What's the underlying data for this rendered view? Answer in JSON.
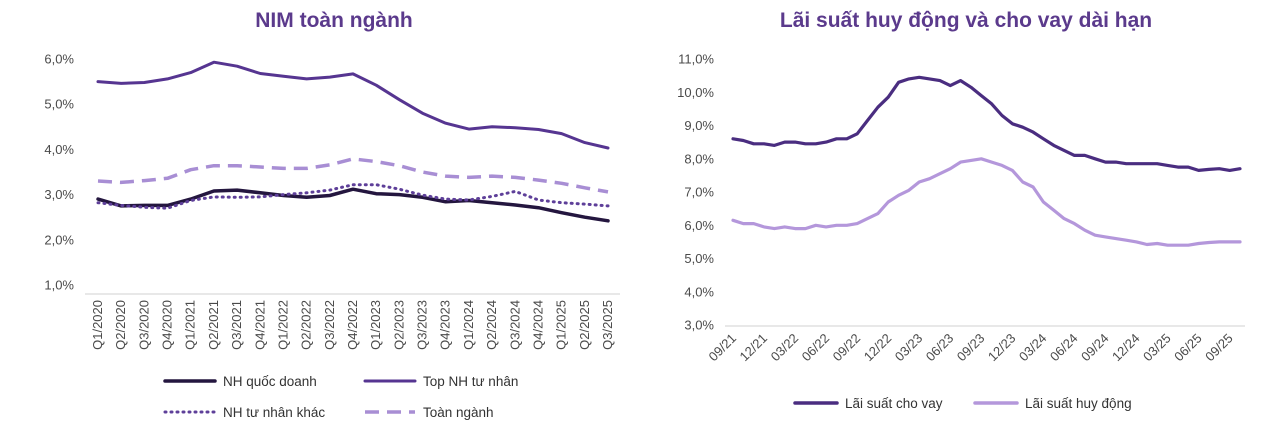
{
  "chart_data": [
    {
      "type": "line",
      "title": "NIM toàn ngành",
      "categories": [
        "Q1/2020",
        "Q2/2020",
        "Q3/2020",
        "Q4/2020",
        "Q1/2021",
        "Q2/2021",
        "Q3/2021",
        "Q4/2021",
        "Q1/2022",
        "Q2/2022",
        "Q3/2022",
        "Q4/2022",
        "Q1/2023",
        "Q2/2023",
        "Q3/2023",
        "Q4/2023",
        "Q1/2024",
        "Q2/2024",
        "Q3/2024",
        "Q4/2024",
        "Q1/2025",
        "Q2/2025",
        "Q3/2025"
      ],
      "yticks": [
        "1,0%",
        "2,0%",
        "3,0%",
        "4,0%",
        "5,0%",
        "6,0%"
      ],
      "ylim": [
        1.0,
        6.0
      ],
      "grid": false,
      "legend_position": "bottom",
      "series": [
        {
          "name": "NH quốc doanh",
          "style": "solid-thick",
          "color": "#24163f",
          "values": [
            2.9,
            2.75,
            2.76,
            2.76,
            2.9,
            3.08,
            3.1,
            3.04,
            2.98,
            2.94,
            2.98,
            3.12,
            3.02,
            3.0,
            2.94,
            2.84,
            2.87,
            2.82,
            2.77,
            2.71,
            2.6,
            2.5,
            2.42
          ]
        },
        {
          "name": "Top NH tư nhân",
          "style": "solid",
          "color": "#563591",
          "values": [
            5.5,
            5.46,
            5.48,
            5.56,
            5.7,
            5.93,
            5.84,
            5.68,
            5.62,
            5.56,
            5.6,
            5.67,
            5.42,
            5.1,
            4.8,
            4.58,
            4.45,
            4.5,
            4.48,
            4.44,
            4.35,
            4.15,
            4.03
          ]
        },
        {
          "name": "NH tư nhân khác",
          "style": "dotted",
          "color": "#5e3f99",
          "values": [
            2.82,
            2.76,
            2.72,
            2.7,
            2.87,
            2.95,
            2.94,
            2.95,
            3.0,
            3.04,
            3.1,
            3.22,
            3.22,
            3.12,
            2.99,
            2.9,
            2.88,
            2.96,
            3.07,
            2.88,
            2.82,
            2.79,
            2.75
          ]
        },
        {
          "name": "Toàn ngành",
          "style": "dashed",
          "color": "#a88ed4",
          "values": [
            3.3,
            3.27,
            3.31,
            3.36,
            3.55,
            3.64,
            3.64,
            3.61,
            3.58,
            3.58,
            3.66,
            3.79,
            3.73,
            3.64,
            3.5,
            3.41,
            3.38,
            3.41,
            3.38,
            3.32,
            3.25,
            3.15,
            3.06
          ]
        }
      ]
    },
    {
      "type": "line",
      "title": "Lãi suất huy động và cho vay dài hạn",
      "xticks": [
        "09/21",
        "12/21",
        "03/22",
        "06/22",
        "09/22",
        "12/22",
        "03/23",
        "06/23",
        "09/23",
        "12/23",
        "03/24",
        "06/24",
        "09/24",
        "12/24",
        "03/25",
        "06/25",
        "09/25"
      ],
      "yticks": [
        "3,0%",
        "4,0%",
        "5,0%",
        "6,0%",
        "7,0%",
        "8,0%",
        "9,0%",
        "10,0%",
        "11,0%"
      ],
      "ylim": [
        3.0,
        11.0
      ],
      "grid": false,
      "legend_position": "bottom",
      "series": [
        {
          "name": "Lãi suất cho vay",
          "color": "#4a2d80",
          "values": [
            8.6,
            8.55,
            8.45,
            8.45,
            8.4,
            8.5,
            8.5,
            8.45,
            8.45,
            8.5,
            8.6,
            8.6,
            8.75,
            9.15,
            9.55,
            9.85,
            10.3,
            10.4,
            10.45,
            10.4,
            10.35,
            10.2,
            10.35,
            10.15,
            9.9,
            9.65,
            9.3,
            9.05,
            8.95,
            8.8,
            8.6,
            8.4,
            8.25,
            8.1,
            8.1,
            8.0,
            7.9,
            7.9,
            7.85,
            7.85,
            7.85,
            7.85,
            7.8,
            7.75,
            7.75,
            7.65,
            7.68,
            7.7,
            7.65,
            7.7
          ]
        },
        {
          "name": "Lãi suất huy động",
          "color": "#b497db",
          "values": [
            6.15,
            6.05,
            6.05,
            5.95,
            5.9,
            5.95,
            5.9,
            5.9,
            6.0,
            5.95,
            6.0,
            6.0,
            6.05,
            6.2,
            6.35,
            6.7,
            6.9,
            7.05,
            7.3,
            7.4,
            7.55,
            7.7,
            7.9,
            7.95,
            8.0,
            7.9,
            7.8,
            7.65,
            7.3,
            7.15,
            6.7,
            6.45,
            6.2,
            6.05,
            5.85,
            5.7,
            5.65,
            5.6,
            5.55,
            5.5,
            5.42,
            5.45,
            5.4,
            5.4,
            5.4,
            5.45,
            5.48,
            5.5,
            5.5,
            5.5
          ]
        }
      ]
    }
  ]
}
